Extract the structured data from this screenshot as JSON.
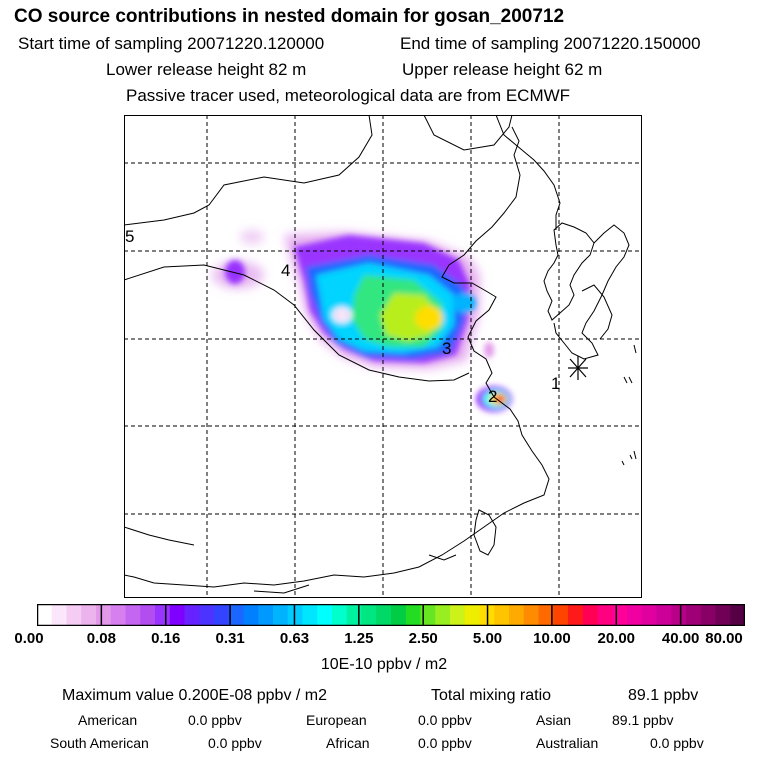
{
  "header": {
    "title": "CO  source contributions in nested domain for gosan_200712",
    "start_sampling": "Start time of sampling 20071220.120000",
    "end_sampling": "End time of sampling 20071220.150000",
    "lower_release": "Lower release height   82 m",
    "upper_release": "Upper release height   62 m",
    "tracer_note": "Passive tracer used, meteorological data are from ECMWF"
  },
  "map": {
    "trajectory_labels": [
      "1",
      "2",
      "3",
      "4",
      "5"
    ],
    "receptor_icon": "asterisk-receptor-icon"
  },
  "colorbar": {
    "tick_labels": [
      "0.00",
      "0.08",
      "0.16",
      "0.31",
      "0.63",
      "1.25",
      "2.50",
      "5.00",
      "10.00",
      "20.00",
      "40.00",
      "80.00"
    ],
    "colors": [
      "#ffffff",
      "#fbe6fb",
      "#f4ccf4",
      "#ecb3ec",
      "#e399e9",
      "#d680f0",
      "#c566f2",
      "#b24df0",
      "#9933ff",
      "#8000ff",
      "#6622ff",
      "#4d33ff",
      "#3344ff",
      "#1a66ff",
      "#0080ff",
      "#0099ff",
      "#00b3ff",
      "#00ccff",
      "#00e6ff",
      "#00ffff",
      "#00ffcc",
      "#00f2a0",
      "#00e680",
      "#00d966",
      "#00cc44",
      "#22dd22",
      "#66e622",
      "#99ee22",
      "#ccf21a",
      "#eeee00",
      "#ffdd00",
      "#ffc400",
      "#ffaa00",
      "#ff8c00",
      "#ff6a00",
      "#ff4400",
      "#ff1a1a",
      "#ff0055",
      "#ff0080",
      "#ff0099",
      "#f000a0",
      "#e000a0",
      "#cc0099",
      "#b80088",
      "#a00077",
      "#880066",
      "#700055",
      "#550044"
    ],
    "unit_label": "10E-10 ppbv / m2"
  },
  "statistics": {
    "max_value_label": "Maximum value  0.200E-08 ppbv / m2",
    "total_mixing_label": "Total mixing ratio",
    "total_mixing_value": "89.1 ppbv",
    "regions": [
      {
        "name": "American",
        "value": "0.0 ppbv"
      },
      {
        "name": "European",
        "value": "0.0 ppbv"
      },
      {
        "name": "Asian",
        "value": "89.1 ppbv"
      },
      {
        "name": "South American",
        "value": "0.0 ppbv"
      },
      {
        "name": "African",
        "value": "0.0 ppbv"
      },
      {
        "name": "Australian",
        "value": "0.0 ppbv"
      }
    ]
  }
}
